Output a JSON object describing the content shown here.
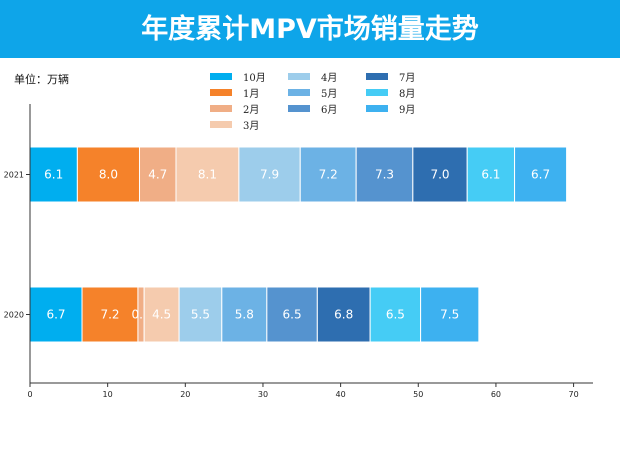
{
  "title": "年度累计MPV市场销量走势",
  "unit_label": "单位：万辆",
  "chart_data": {
    "type": "bar",
    "orientation": "horizontal",
    "stacked": true,
    "title": "年度累计MPV市场销量走势",
    "categories": [
      "2021",
      "2020"
    ],
    "series": [
      {
        "name": "10月",
        "color": "#00aeef",
        "values": [
          6.1,
          6.7
        ]
      },
      {
        "name": "1月",
        "color": "#f5822a",
        "values": [
          8.0,
          7.2
        ]
      },
      {
        "name": "2月",
        "color": "#f0ae86",
        "values": [
          4.7,
          0.8
        ]
      },
      {
        "name": "3月",
        "color": "#f5cbae",
        "values": [
          8.1,
          4.5
        ]
      },
      {
        "name": "4月",
        "color": "#9dcdeb",
        "values": [
          7.9,
          5.5
        ]
      },
      {
        "name": "5月",
        "color": "#6cb2e5",
        "values": [
          7.2,
          5.8
        ]
      },
      {
        "name": "6月",
        "color": "#5593cf",
        "values": [
          7.3,
          6.5
        ]
      },
      {
        "name": "7月",
        "color": "#2e6eb0",
        "values": [
          7.0,
          6.8
        ]
      },
      {
        "name": "8月",
        "color": "#45ccf5",
        "values": [
          6.1,
          6.5
        ]
      },
      {
        "name": "9月",
        "color": "#3db1f0",
        "values": [
          6.7,
          7.5
        ]
      }
    ],
    "xticks": [
      0,
      10,
      20,
      30,
      40,
      50,
      60,
      70
    ],
    "xlim": [
      0,
      72.5
    ],
    "legend": "top-center",
    "grid": false
  }
}
